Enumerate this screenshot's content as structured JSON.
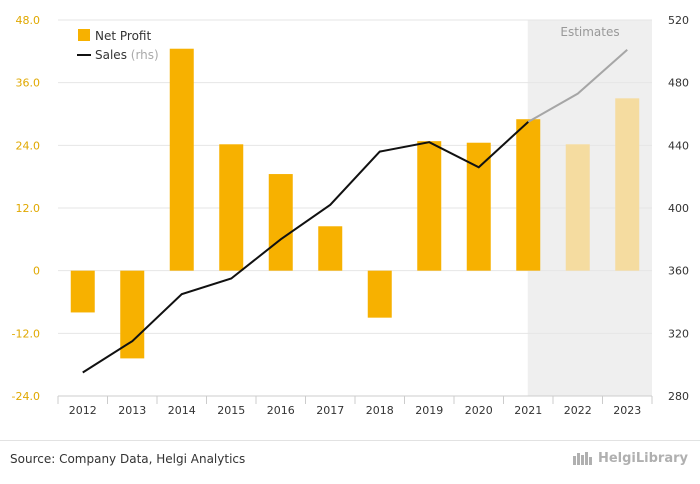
{
  "chart_data": {
    "type": "bar",
    "categories": [
      "2012",
      "2013",
      "2014",
      "2015",
      "2016",
      "2017",
      "2018",
      "2019",
      "2020",
      "2021",
      "2022",
      "2023"
    ],
    "series": [
      {
        "name": "Net Profit",
        "type": "bar",
        "axis": "left",
        "values": [
          -8.0,
          -16.8,
          42.5,
          24.2,
          18.5,
          8.5,
          -9.0,
          24.8,
          24.5,
          29.0,
          24.2,
          33.0
        ],
        "color": "#f7b100",
        "estimate_color": "#f5dca0"
      },
      {
        "name": "Sales",
        "name_suffix": "(rhs)",
        "type": "line",
        "axis": "right",
        "values": [
          295,
          315,
          345,
          355,
          380,
          402,
          436,
          442,
          426,
          455,
          473,
          501
        ],
        "color": "#111111",
        "estimate_color": "#a6a6a6"
      }
    ],
    "estimate_from_index": 10,
    "estimates_label": "Estimates",
    "y_left": {
      "min": -24,
      "max": 48,
      "ticks": [
        "-24.0",
        "-12.0",
        "0",
        "12.0",
        "24.0",
        "36.0",
        "48.0"
      ],
      "tick_values": [
        -24,
        -12,
        0,
        12,
        24,
        36,
        48
      ]
    },
    "y_right": {
      "min": 280,
      "max": 520,
      "ticks": [
        "280",
        "320",
        "360",
        "400",
        "440",
        "480",
        "520"
      ],
      "tick_values": [
        280,
        320,
        360,
        400,
        440,
        480,
        520
      ]
    },
    "grid": true,
    "legend_position": "top-left"
  },
  "footer": {
    "source": "Source: Company Data, Helgi Analytics",
    "brand": "HelgiLibrary"
  }
}
